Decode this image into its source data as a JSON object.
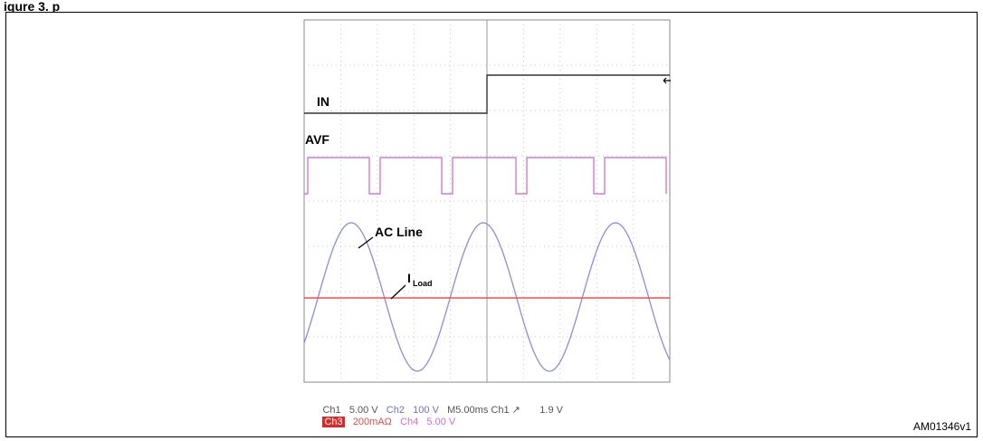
{
  "figure": {
    "title": "igure 3.   p",
    "code": "AM01346v1"
  },
  "labels": {
    "in": "IN",
    "avf": "AVF",
    "ac_line": "AC Line",
    "iload_main": "I",
    "iload_sub": "Load"
  },
  "status": {
    "ch1": "Ch1",
    "ch1_val": "5.00 V",
    "ch2": "Ch2",
    "ch2_val": "100 V",
    "timebase": "M5.00ms",
    "trig_src": "Ch1",
    "trig_slope": "↗",
    "trig_level": "1.9 V",
    "ch3": "Ch3",
    "ch3_val": "200mAΩ",
    "ch4": "Ch4",
    "ch4_val": "5.00 V"
  },
  "colors": {
    "in_trace": "#333333",
    "avf_trace": "#d67ad6",
    "ac_trace": "#8c8ce0",
    "iload_trace": "#ff4b4b",
    "grid": "#c9c9c9"
  }
}
